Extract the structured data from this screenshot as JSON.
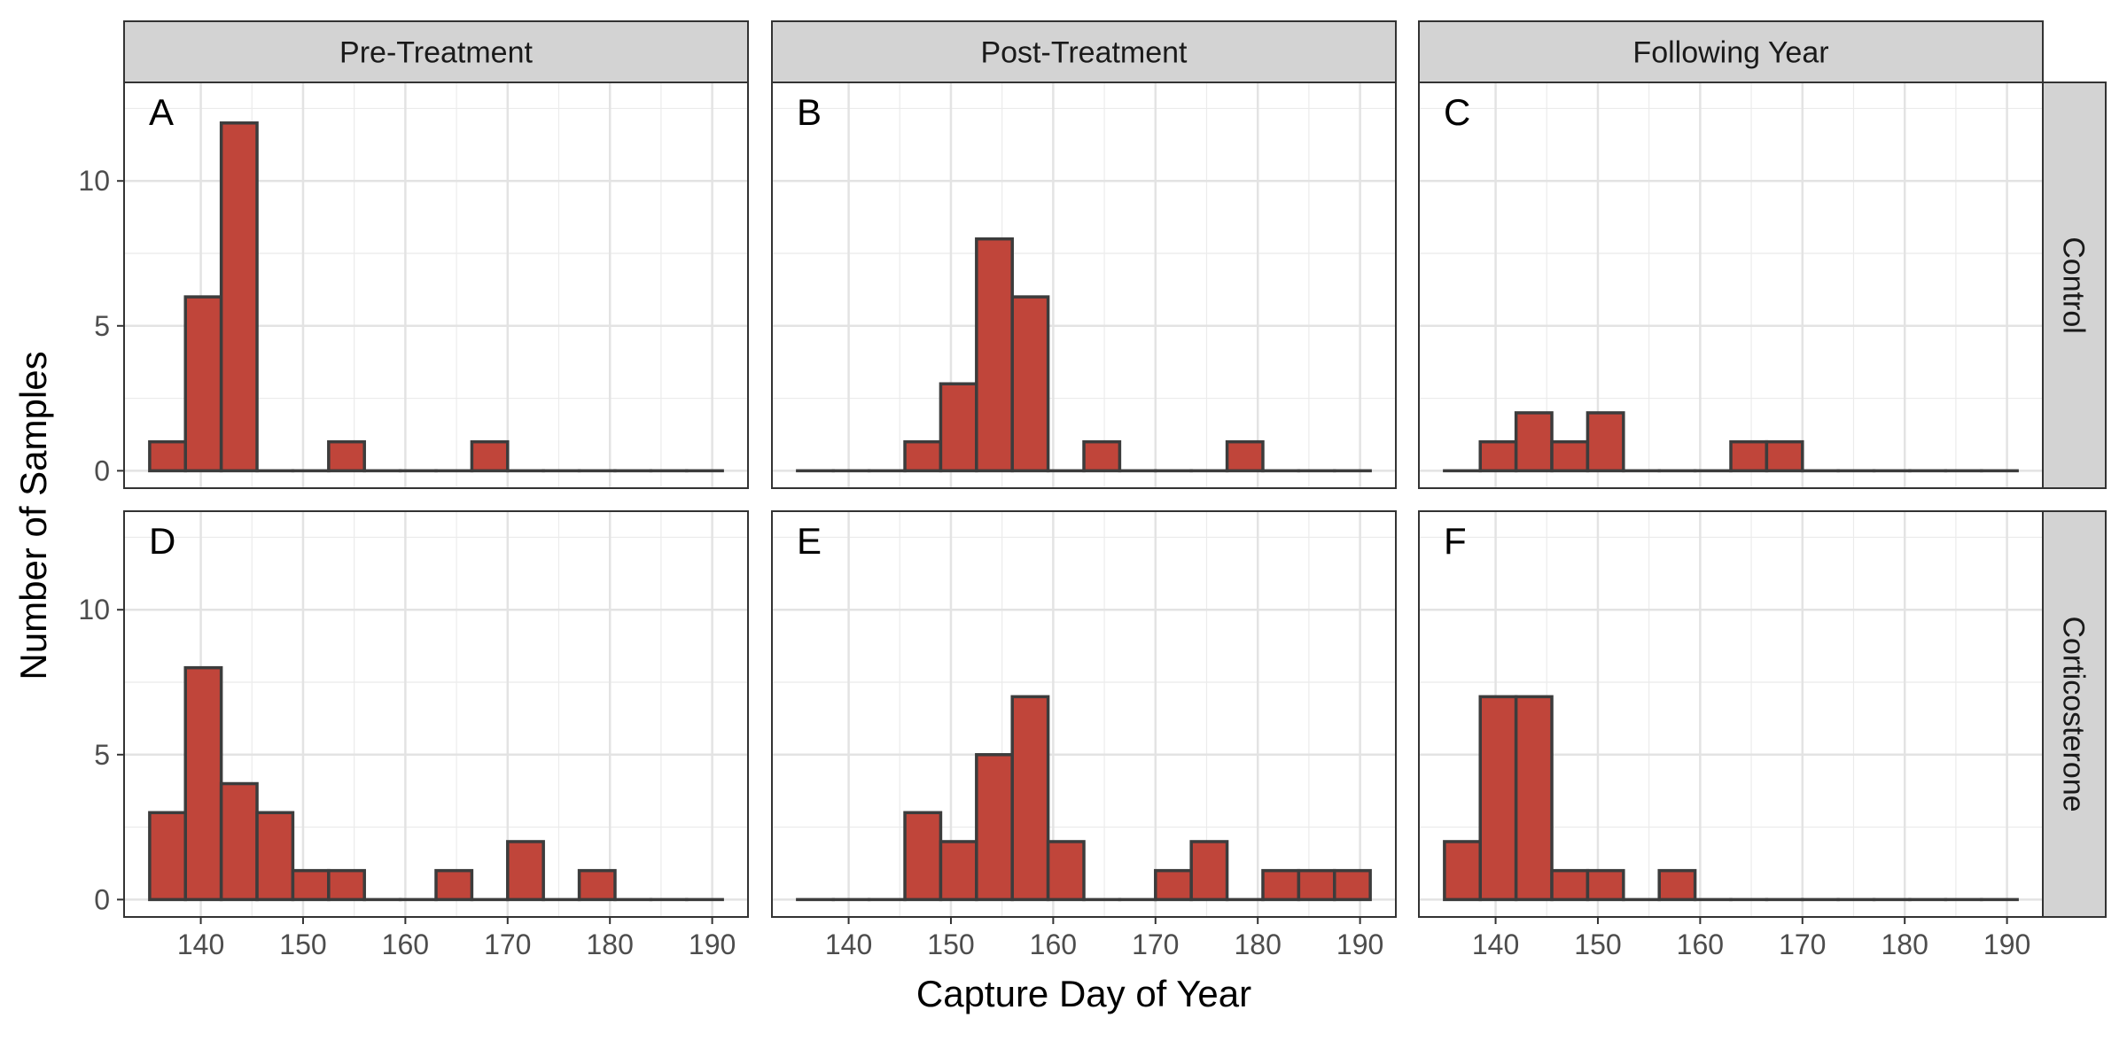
{
  "chart_data": {
    "type": "bar",
    "variant": "faceted histogram",
    "xlabel": "Capture Day of Year",
    "ylabel": "Number of Samples",
    "xlim": [
      132.5,
      193.5
    ],
    "ylim": [
      -0.6,
      13.4
    ],
    "x_ticks": [
      140,
      150,
      160,
      170,
      180,
      190
    ],
    "y_ticks": [
      0,
      5,
      10
    ],
    "grid": true,
    "bin_width": 3.5,
    "bin_centers": [
      136.75,
      140.25,
      143.75,
      147.25,
      150.75,
      154.25,
      157.75,
      161.25,
      164.75,
      168.25,
      171.75,
      175.25,
      178.75,
      182.25,
      185.75,
      189.25
    ],
    "column_labels": [
      "Pre-Treatment",
      "Post-Treatment",
      "Following Year"
    ],
    "row_labels": [
      "Control",
      "Corticosterone"
    ],
    "colors": {
      "bar_fill": "#c0453a",
      "bar_stroke": "#3c3c3c",
      "strip_fill": "#d3d3d3"
    },
    "panels": [
      {
        "label": "A",
        "row": "Control",
        "column": "Pre-Treatment",
        "values": [
          1,
          6,
          12,
          0,
          0,
          1,
          0,
          0,
          0,
          1,
          0,
          0,
          0,
          0,
          0,
          0
        ]
      },
      {
        "label": "B",
        "row": "Control",
        "column": "Post-Treatment",
        "values": [
          0,
          0,
          0,
          1,
          3,
          8,
          6,
          0,
          1,
          0,
          0,
          0,
          1,
          0,
          0,
          0
        ]
      },
      {
        "label": "C",
        "row": "Control",
        "column": "Following Year",
        "values": [
          0,
          1,
          2,
          1,
          2,
          0,
          0,
          0,
          1,
          1,
          0,
          0,
          0,
          0,
          0,
          0
        ]
      },
      {
        "label": "D",
        "row": "Corticosterone",
        "column": "Pre-Treatment",
        "values": [
          3,
          8,
          4,
          3,
          1,
          1,
          0,
          0,
          1,
          0,
          2,
          0,
          1,
          0,
          0,
          0
        ]
      },
      {
        "label": "E",
        "row": "Corticosterone",
        "column": "Post-Treatment",
        "values": [
          0,
          0,
          0,
          3,
          2,
          5,
          7,
          2,
          0,
          0,
          1,
          2,
          0,
          1,
          1,
          1
        ]
      },
      {
        "label": "F",
        "row": "Corticosterone",
        "column": "Following Year",
        "values": [
          2,
          7,
          7,
          1,
          1,
          0,
          1,
          0,
          0,
          0,
          0,
          0,
          0,
          0,
          0,
          0
        ]
      }
    ]
  }
}
